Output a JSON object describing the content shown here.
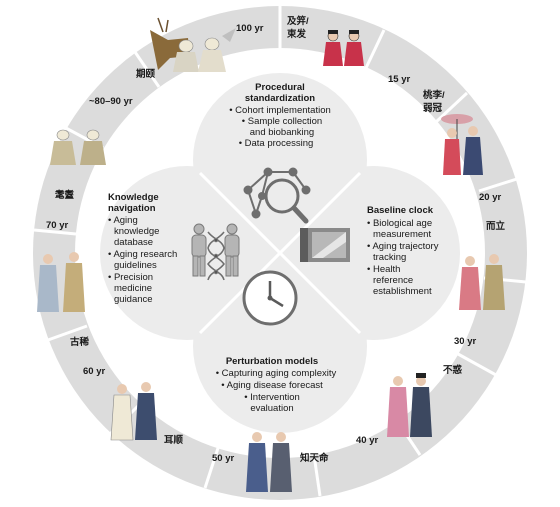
{
  "petals": {
    "top": {
      "title": [
        "Procedural",
        "standardization"
      ],
      "items": [
        "• Cohort implementation",
        "• Sample collection",
        "and biobanking",
        "• Data processing"
      ]
    },
    "left": {
      "title": [
        "Knowledge",
        "navigation"
      ],
      "items": [
        "• Aging",
        "knowledge",
        "database",
        "• Aging research",
        "guidelines",
        "• Precision",
        "medicine",
        "guidance"
      ]
    },
    "right": {
      "title": [
        "Baseline clock"
      ],
      "items": [
        "• Biological age",
        "measurement",
        "• Aging trajectory",
        "tracking",
        "• Health",
        "reference",
        "establishment"
      ]
    },
    "bottom": {
      "title": [
        "Perturbation models"
      ],
      "items": [
        "• Capturing aging complexity",
        "• Aging disease forecast",
        "• Intervention",
        "evaluation"
      ]
    }
  },
  "ring_labels": [
    "100 yr",
    "及笄/",
    "束发",
    "15 yr",
    "桃李/",
    "弱冠",
    "20 yr",
    "而立",
    "30 yr",
    "不惑",
    "40 yr",
    "知天命",
    "50 yr",
    "耳顺",
    "60 yr",
    "古稀",
    "70 yr",
    "耄耋",
    "~80–90 yr",
    "期颐"
  ],
  "icons": [
    "network-magnifier-icon",
    "mirror-icon",
    "clock-icon",
    "dna-people-icon"
  ],
  "colors": {
    "ring": "#dcdcdc",
    "petal": "#ececec",
    "divider": "#ffffff",
    "icon": "#6e6e6e"
  }
}
